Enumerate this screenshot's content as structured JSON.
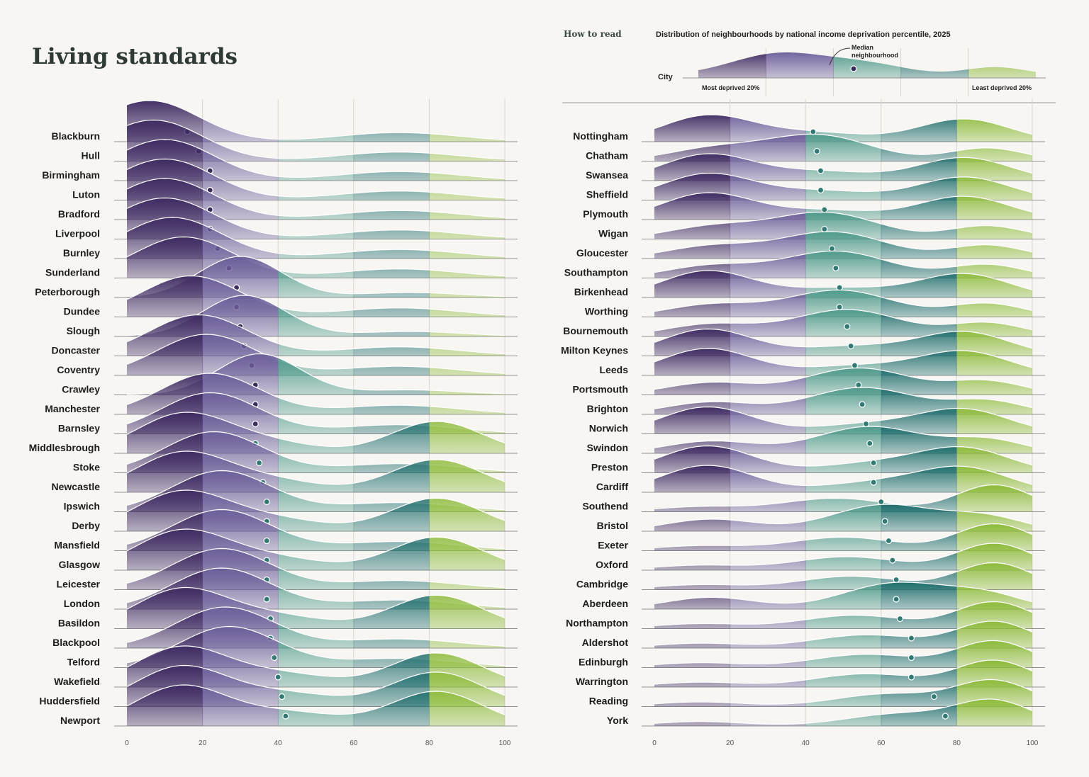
{
  "title": "Living standards",
  "how_to_read": {
    "heading": "How to read",
    "subtitle": "Distribution of neighbourhoods by national income deprivation percentile, 2025",
    "city_label": "City",
    "median_label_line1": "Median",
    "median_label_line2": "neighbourhood",
    "most_deprived": "Most deprived 20%",
    "least_deprived": "Least deprived 20%",
    "example_median": 46
  },
  "colors": {
    "band_0_20": "#3f2c63",
    "band_20_40": "#6d5f9a",
    "band_40_60": "#4f9a8b",
    "band_60_80": "#1f6e6d",
    "band_80_100": "#8dbb3b",
    "gridline": "#d8d4d0",
    "baseline": "#6f6f6f"
  },
  "chart_data": [
    {
      "type": "area",
      "panel": "left",
      "xlim": [
        0,
        100
      ],
      "xticks": [
        "0",
        "20",
        "40",
        "60",
        "80",
        "100"
      ],
      "series": [
        {
          "name": "Blackburn",
          "median": 16,
          "shape": "low"
        },
        {
          "name": "Hull",
          "median": 19,
          "shape": "low"
        },
        {
          "name": "Birmingham",
          "median": 22,
          "shape": "low"
        },
        {
          "name": "Luton",
          "median": 22,
          "shape": "low"
        },
        {
          "name": "Bradford",
          "median": 22,
          "shape": "low"
        },
        {
          "name": "Liverpool",
          "median": 22,
          "shape": "low"
        },
        {
          "name": "Burnley",
          "median": 24,
          "shape": "low"
        },
        {
          "name": "Sunderland",
          "median": 27,
          "shape": "low"
        },
        {
          "name": "Peterborough",
          "median": 29,
          "shape": "mid-low"
        },
        {
          "name": "Dundee",
          "median": 29,
          "shape": "low"
        },
        {
          "name": "Slough",
          "median": 30,
          "shape": "mid-low"
        },
        {
          "name": "Doncaster",
          "median": 31,
          "shape": "low"
        },
        {
          "name": "Coventry",
          "median": 33,
          "shape": "low"
        },
        {
          "name": "Crawley",
          "median": 34,
          "shape": "mid-low"
        },
        {
          "name": "Manchester",
          "median": 34,
          "shape": "low"
        },
        {
          "name": "Barnsley",
          "median": 34,
          "shape": "low"
        },
        {
          "name": "Middlesbrough",
          "median": 34,
          "shape": "bimodal"
        },
        {
          "name": "Stoke",
          "median": 35,
          "shape": "low"
        },
        {
          "name": "Newcastle",
          "median": 36,
          "shape": "bimodal"
        },
        {
          "name": "Ipswich",
          "median": 37,
          "shape": "low"
        },
        {
          "name": "Derby",
          "median": 37,
          "shape": "bimodal"
        },
        {
          "name": "Mansfield",
          "median": 37,
          "shape": "low"
        },
        {
          "name": "Glasgow",
          "median": 37,
          "shape": "bimodal"
        },
        {
          "name": "Leicester",
          "median": 37,
          "shape": "low"
        },
        {
          "name": "London",
          "median": 37,
          "shape": "low"
        },
        {
          "name": "Basildon",
          "median": 38,
          "shape": "bimodal"
        },
        {
          "name": "Blackpool",
          "median": 38,
          "shape": "low"
        },
        {
          "name": "Telford",
          "median": 39,
          "shape": "low"
        },
        {
          "name": "Wakefield",
          "median": 40,
          "shape": "bimodal"
        },
        {
          "name": "Huddersfield",
          "median": 41,
          "shape": "bimodal"
        },
        {
          "name": "Newport",
          "median": 42,
          "shape": "bimodal"
        }
      ]
    },
    {
      "type": "area",
      "panel": "right",
      "xlim": [
        0,
        100
      ],
      "xticks": [
        "0",
        "20",
        "40",
        "60",
        "80",
        "100"
      ],
      "series": [
        {
          "name": "Nottingham",
          "median": 42,
          "shape": "bimodal"
        },
        {
          "name": "Chatham",
          "median": 43,
          "shape": "mid"
        },
        {
          "name": "Swansea",
          "median": 44,
          "shape": "bimodal"
        },
        {
          "name": "Sheffield",
          "median": 44,
          "shape": "bimodal"
        },
        {
          "name": "Plymouth",
          "median": 45,
          "shape": "bimodal"
        },
        {
          "name": "Wigan",
          "median": 45,
          "shape": "mid"
        },
        {
          "name": "Gloucester",
          "median": 47,
          "shape": "mid"
        },
        {
          "name": "Southampton",
          "median": 48,
          "shape": "mid"
        },
        {
          "name": "Birkenhead",
          "median": 49,
          "shape": "bimodal"
        },
        {
          "name": "Worthing",
          "median": 49,
          "shape": "mid"
        },
        {
          "name": "Bournemouth",
          "median": 51,
          "shape": "mid"
        },
        {
          "name": "Milton Keynes",
          "median": 52,
          "shape": "bimodal"
        },
        {
          "name": "Leeds",
          "median": 53,
          "shape": "bimodal"
        },
        {
          "name": "Portsmouth",
          "median": 54,
          "shape": "mid"
        },
        {
          "name": "Brighton",
          "median": 55,
          "shape": "mid"
        },
        {
          "name": "Norwich",
          "median": 56,
          "shape": "bimodal"
        },
        {
          "name": "Swindon",
          "median": 57,
          "shape": "mid"
        },
        {
          "name": "Preston",
          "median": 58,
          "shape": "bimodal"
        },
        {
          "name": "Cardiff",
          "median": 58,
          "shape": "bimodal"
        },
        {
          "name": "Southend",
          "median": 60,
          "shape": "high"
        },
        {
          "name": "Bristol",
          "median": 61,
          "shape": "mid"
        },
        {
          "name": "Exeter",
          "median": 62,
          "shape": "high"
        },
        {
          "name": "Oxford",
          "median": 63,
          "shape": "high"
        },
        {
          "name": "Cambridge",
          "median": 64,
          "shape": "high"
        },
        {
          "name": "Aberdeen",
          "median": 64,
          "shape": "mid"
        },
        {
          "name": "Northampton",
          "median": 65,
          "shape": "high"
        },
        {
          "name": "Aldershot",
          "median": 68,
          "shape": "high"
        },
        {
          "name": "Edinburgh",
          "median": 68,
          "shape": "high"
        },
        {
          "name": "Warrington",
          "median": 68,
          "shape": "high"
        },
        {
          "name": "Reading",
          "median": 74,
          "shape": "high"
        },
        {
          "name": "York",
          "median": 77,
          "shape": "high"
        }
      ]
    }
  ]
}
